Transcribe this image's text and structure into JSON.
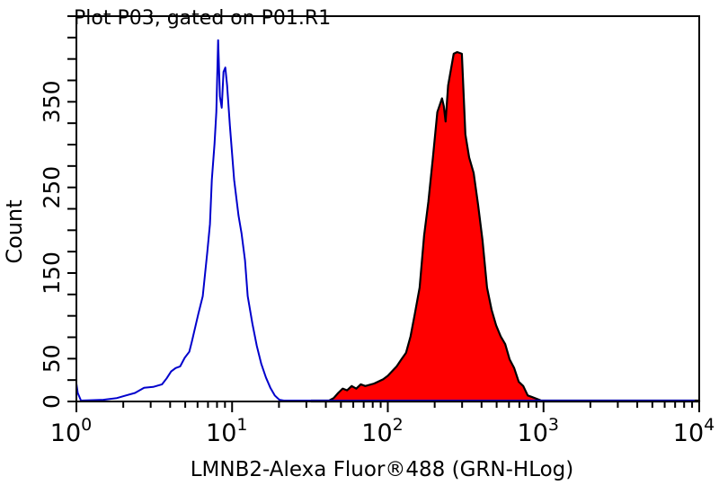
{
  "chart_data": {
    "type": "area",
    "title": "Plot P03, gated on P01.R1",
    "xlabel": "LMNB2-Alexa Fluor®488 (GRN-HLog)",
    "ylabel": "Count",
    "xscale": "log",
    "xlim": [
      1,
      10000
    ],
    "ylim": [
      0,
      450
    ],
    "grid": false,
    "x_ticks": [
      {
        "base": "10",
        "exp": "0",
        "value": 1
      },
      {
        "base": "10",
        "exp": "1",
        "value": 10
      },
      {
        "base": "10",
        "exp": "2",
        "value": 100
      },
      {
        "base": "10",
        "exp": "3",
        "value": 1000
      },
      {
        "base": "10",
        "exp": "4",
        "value": 10000
      }
    ],
    "y_tick_labels": [
      {
        "label": "0",
        "value": 0
      },
      {
        "label": "50",
        "value": 50
      },
      {
        "label": "150",
        "value": 150
      },
      {
        "label": "250",
        "value": 250
      },
      {
        "label": "350",
        "value": 350
      }
    ],
    "y_minor_step": 25,
    "series": [
      {
        "style": "outline",
        "color": "#0000cc",
        "x": [
          1.0,
          1.02,
          1.07,
          1.49,
          1.82,
          2.08,
          2.38,
          2.72,
          3.11,
          3.55,
          3.8,
          4.06,
          4.34,
          4.64,
          4.96,
          5.31,
          5.52,
          6.06,
          6.48,
          6.93,
          7.21,
          7.41,
          7.71,
          7.92,
          8.13,
          8.35,
          8.58,
          8.81,
          9.05,
          9.29,
          9.68,
          10.3,
          11.0,
          11.5,
          12.1,
          12.6,
          13.5,
          14.4,
          15.4,
          16.5,
          17.6,
          18.8,
          20.1,
          21.5,
          26.3,
          9350
        ],
        "y": [
          21,
          10,
          1,
          2,
          4,
          7,
          10,
          16,
          17,
          20,
          27,
          35,
          39,
          41,
          51,
          58,
          70,
          102,
          123,
          175,
          207,
          259,
          301,
          338,
          422,
          356,
          343,
          385,
          390,
          369,
          322,
          259,
          217,
          196,
          165,
          123,
          91,
          65,
          44,
          28,
          16,
          7,
          2,
          1,
          1,
          1
        ]
      },
      {
        "style": "filled",
        "color": "#ff0000",
        "outline": "#000000",
        "x": [
          32.2,
          42.0,
          44.9,
          48.0,
          51.3,
          54.8,
          58.6,
          62.7,
          67.0,
          71.6,
          81.8,
          93.5,
          100,
          114,
          122,
          131,
          140,
          149,
          160,
          171,
          182,
          195,
          208,
          223,
          229,
          235,
          244,
          265,
          279,
          299,
          315,
          333,
          356,
          380,
          406,
          434,
          464,
          496,
          531,
          567,
          606,
          648,
          693,
          741,
          792,
          847,
          967,
          10000
        ],
        "y": [
          1,
          1,
          4,
          10,
          15,
          13,
          18,
          15,
          20,
          18,
          21,
          26,
          30,
          41,
          49,
          57,
          76,
          102,
          133,
          194,
          233,
          285,
          338,
          354,
          345,
          327,
          369,
          406,
          408,
          406,
          312,
          285,
          267,
          230,
          188,
          133,
          107,
          89,
          76,
          67,
          49,
          39,
          23,
          18,
          7,
          5,
          1,
          1
        ]
      }
    ]
  }
}
